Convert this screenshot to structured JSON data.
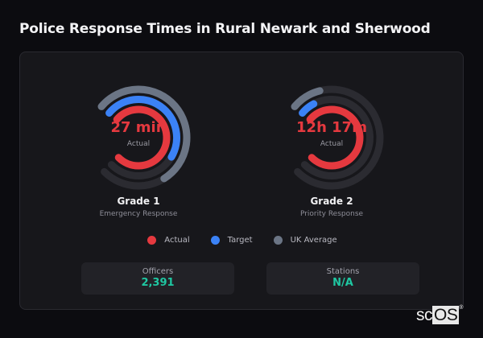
{
  "header": {
    "title": "Police Response Times in Rural Newark and Sherwood"
  },
  "gauges": [
    {
      "name": "Grade 1",
      "description": "Emergency Response",
      "value_label": "27 min",
      "sub_label": "Actual"
    },
    {
      "name": "Grade 2",
      "description": "Priority Response",
      "value_label": "12h 17m",
      "sub_label": "Actual"
    }
  ],
  "legend": [
    {
      "label": "Actual",
      "color": "#e5393f"
    },
    {
      "label": "Target",
      "color": "#3b82f6"
    },
    {
      "label": "UK Average",
      "color": "#6b7585"
    }
  ],
  "stats": [
    {
      "label": "Officers",
      "value": "2,391"
    },
    {
      "label": "Stations",
      "value": "N/A"
    }
  ],
  "branding": {
    "logo_prefix": "sc",
    "logo_suffix": "OS",
    "mark": "®"
  },
  "colors": {
    "actual": "#e5393f",
    "target": "#3b82f6",
    "uk_average": "#6b7585",
    "track": "#2b2b31",
    "accent": "#1fc7a2"
  },
  "chart_data": [
    {
      "type": "radial-bar",
      "title": "Grade 1",
      "subtitle": "Emergency Response",
      "center_label": "27 min",
      "series": [
        {
          "name": "Actual",
          "fill_fraction": 1.0
        },
        {
          "name": "Target",
          "fill_fraction": 0.62
        },
        {
          "name": "UK Average",
          "fill_fraction": 0.72
        }
      ]
    },
    {
      "type": "radial-bar",
      "title": "Grade 2",
      "subtitle": "Priority Response",
      "center_label": "12h 17m",
      "series": [
        {
          "name": "Actual",
          "fill_fraction": 1.0
        },
        {
          "name": "Target",
          "fill_fraction": 0.08
        },
        {
          "name": "UK Average",
          "fill_fraction": 0.13
        }
      ]
    }
  ]
}
